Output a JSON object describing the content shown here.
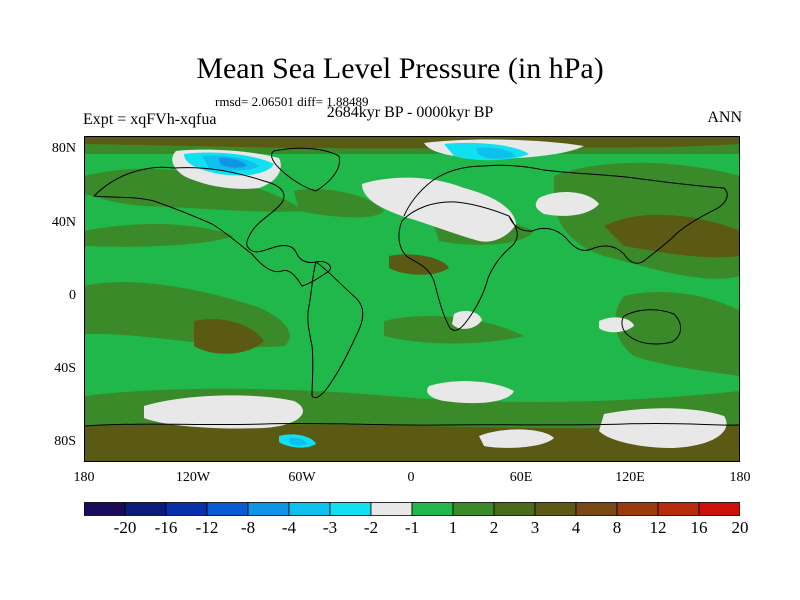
{
  "header": {
    "title": "Mean Sea Level Pressure (in hPa)",
    "stats": "rmsd= 2.06501 diff= 1.88489",
    "period": "2684kyr BP - 0000kyr BP",
    "experiment": "Expt = xqFVh-xqfua",
    "season": "ANN"
  },
  "axes": {
    "lat_labels": [
      "80N",
      "40N",
      "0",
      "40S",
      "80S"
    ],
    "lat_values": [
      80,
      40,
      0,
      -40,
      -80
    ],
    "lon_labels": [
      "180",
      "120W",
      "60W",
      "0",
      "60E",
      "120E",
      "180"
    ],
    "lon_values": [
      -180,
      -120,
      -60,
      0,
      60,
      120,
      180
    ],
    "lat_range": [
      -90,
      90
    ],
    "lon_range": [
      -180,
      180
    ]
  },
  "colorbar": {
    "colors": [
      "#1a0a5a",
      "#0a1c7a",
      "#0830a8",
      "#0a5ad2",
      "#1095e6",
      "#10c0ec",
      "#10e0f0",
      "#e8e8e8",
      "#20b84a",
      "#3a8a2a",
      "#4a6a1c",
      "#5a5a14",
      "#7a4814",
      "#9a3a10",
      "#b82a0c",
      "#cc100a"
    ],
    "labels": [
      "-20",
      "-16",
      "-12",
      "-8",
      "-4",
      "-3",
      "-2",
      "-1",
      "1",
      "2",
      "3",
      "4",
      "8",
      "12",
      "16",
      "20"
    ]
  }
}
